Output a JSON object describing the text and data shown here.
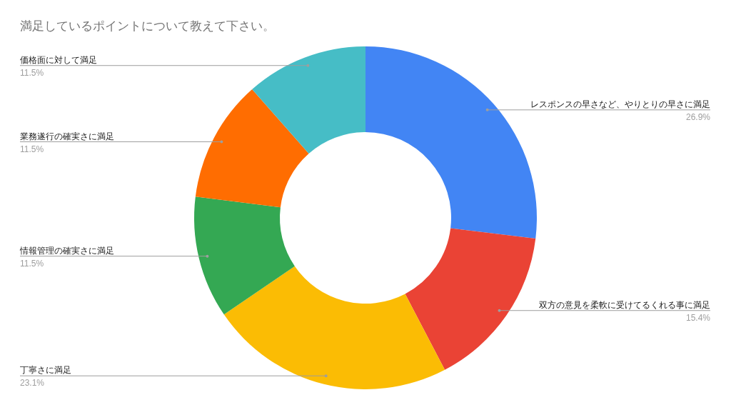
{
  "chart_data": {
    "type": "donut",
    "title": "満足しているポイントについて教えて下さい。",
    "categories": [
      "レスポンスの早さなど、やりとりの早さに満足",
      "双方の意見を柔軟に受けてるくれる事に満足",
      "丁寧さに満足",
      "情報管理の確実さに満足",
      "業務遂行の確実さに満足",
      "価格面に対して満足"
    ],
    "values": [
      26.9,
      15.4,
      23.1,
      11.5,
      11.5,
      11.5
    ],
    "colors": [
      "#4285f4",
      "#ea4335",
      "#fbbc04",
      "#34a853",
      "#ff6d01",
      "#46bdc6"
    ],
    "value_labels": [
      "26.9%",
      "15.4%",
      "23.1%",
      "11.5%",
      "11.5%",
      "11.5%"
    ]
  }
}
